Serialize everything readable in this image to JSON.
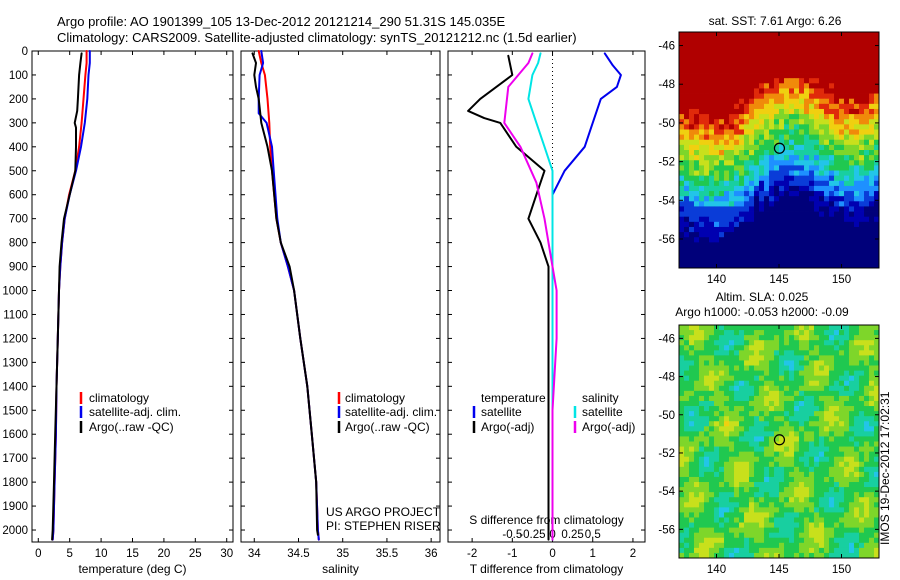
{
  "header": {
    "line1": "Argo profile: AO 1901399_105 13-Dec-2012 20121214_290 51.31S 145.035E",
    "line2": "Climatology: CARS2009. Satellite-adjusted climatology: synTS_20121212.nc (1.5d earlier)"
  },
  "colors": {
    "climatology": "#ff0000",
    "satellite": "#0000ee",
    "argo": "#000000",
    "satellite_salinity": "#00e5e5",
    "argo_salinity": "#ee00ee"
  },
  "legend_profile": {
    "climatology": "climatology",
    "satellite": "satellite-adj. clim.",
    "argo": "Argo(..raw -QC)"
  },
  "legend_diff": {
    "temperature_heading": "temperature",
    "salinity_heading": "salinity",
    "satellite": "satellite",
    "argo": "Argo(-adj)"
  },
  "credits": {
    "line1": "US ARGO PROJECT",
    "line2": "PI: STEPHEN RISER"
  },
  "map_sst": {
    "title": "sat. SST: 7.61 Argo: 6.26",
    "palette": [
      "#00007a",
      "#0000b0",
      "#0a3cd8",
      "#1e90ff",
      "#22c5e8",
      "#18cfa0",
      "#20c850",
      "#7ed62a",
      "#c8e01c",
      "#f0d010",
      "#f08a0a",
      "#e02a0a",
      "#b00000"
    ]
  },
  "map_sla": {
    "title_line1": "Altim. SLA: 0.025",
    "title_line2": "Argo h1000: -0.053 h2000: -0.09"
  },
  "timestamp": "IMOS 19-Dec-2012 17:02:31",
  "chart_data": [
    {
      "type": "line",
      "panel": "temperature",
      "xlabel": "temperature (deg C)",
      "ylabel": "",
      "xlim": [
        -1,
        31
      ],
      "ylim": [
        2050,
        0
      ],
      "xticks": [
        0,
        5,
        10,
        15,
        20,
        25,
        30
      ],
      "xtick_labels": [
        "0",
        "5",
        "10",
        "15",
        "20",
        "25",
        "30"
      ],
      "yticks": [
        0,
        100,
        200,
        300,
        400,
        500,
        600,
        700,
        800,
        900,
        1000,
        1100,
        1200,
        1300,
        1400,
        1500,
        1600,
        1700,
        1800,
        1900,
        2000
      ],
      "ytick_labels": [
        "0",
        "100",
        "200",
        "300",
        "400",
        "500",
        "600",
        "700",
        "800",
        "900",
        "1000",
        "1100",
        "1200",
        "1300",
        "1400",
        "1500",
        "1600",
        "1700",
        "1800",
        "1900",
        "2000"
      ],
      "series": [
        {
          "name": "climatology",
          "color": "#ff0000",
          "points": [
            [
              7.7,
              0
            ],
            [
              7.7,
              50
            ],
            [
              7.5,
              100
            ],
            [
              7.2,
              200
            ],
            [
              6.9,
              300
            ],
            [
              6.5,
              400
            ],
            [
              5.9,
              500
            ],
            [
              4.9,
              600
            ],
            [
              4.2,
              700
            ],
            [
              3.8,
              800
            ],
            [
              3.5,
              900
            ],
            [
              3.3,
              1000
            ],
            [
              3.1,
              1200
            ],
            [
              2.9,
              1400
            ],
            [
              2.8,
              1600
            ],
            [
              2.6,
              1800
            ],
            [
              2.4,
              2000
            ],
            [
              2.3,
              2040
            ]
          ]
        },
        {
          "name": "satellite-adj. clim.",
          "color": "#0000ee",
          "points": [
            [
              8.2,
              0
            ],
            [
              8.2,
              50
            ],
            [
              8.0,
              100
            ],
            [
              7.8,
              200
            ],
            [
              7.4,
              300
            ],
            [
              6.8,
              400
            ],
            [
              6.0,
              500
            ],
            [
              5.0,
              600
            ],
            [
              4.2,
              700
            ],
            [
              3.8,
              800
            ],
            [
              3.5,
              900
            ],
            [
              3.3,
              1000
            ],
            [
              3.1,
              1200
            ],
            [
              2.9,
              1400
            ],
            [
              2.8,
              1600
            ],
            [
              2.6,
              1800
            ],
            [
              2.4,
              2000
            ],
            [
              2.3,
              2040
            ]
          ]
        },
        {
          "name": "Argo(..raw -QC)",
          "color": "#000000",
          "points": [
            [
              6.9,
              10
            ],
            [
              6.7,
              50
            ],
            [
              6.5,
              100
            ],
            [
              6.4,
              150
            ],
            [
              6.3,
              200
            ],
            [
              6.2,
              250
            ],
            [
              5.8,
              300
            ],
            [
              6.0,
              320
            ],
            [
              6.0,
              400
            ],
            [
              5.9,
              500
            ],
            [
              5.0,
              600
            ],
            [
              4.1,
              700
            ],
            [
              3.7,
              800
            ],
            [
              3.4,
              900
            ],
            [
              3.3,
              1000
            ],
            [
              3.1,
              1200
            ],
            [
              2.9,
              1400
            ],
            [
              2.7,
              1600
            ],
            [
              2.5,
              1800
            ],
            [
              2.3,
              2000
            ],
            [
              2.2,
              2040
            ]
          ]
        }
      ]
    },
    {
      "type": "line",
      "panel": "salinity",
      "xlabel": "salinity",
      "ylabel": "",
      "xlim": [
        33.85,
        36.1
      ],
      "ylim": [
        2050,
        0
      ],
      "xticks": [
        34,
        34.5,
        35,
        35.5,
        36
      ],
      "xtick_labels": [
        "34",
        "34.5",
        "35",
        "35.5",
        "36"
      ],
      "series": [
        {
          "name": "climatology",
          "color": "#ff0000",
          "points": [
            [
              34.05,
              0
            ],
            [
              34.08,
              50
            ],
            [
              34.12,
              100
            ],
            [
              34.15,
              200
            ],
            [
              34.17,
              300
            ],
            [
              34.18,
              400
            ],
            [
              34.2,
              500
            ],
            [
              34.25,
              700
            ],
            [
              34.3,
              800
            ],
            [
              34.38,
              900
            ],
            [
              34.45,
              1000
            ],
            [
              34.52,
              1200
            ],
            [
              34.6,
              1400
            ],
            [
              34.65,
              1600
            ],
            [
              34.7,
              1800
            ],
            [
              34.72,
              2000
            ],
            [
              34.73,
              2040
            ]
          ]
        },
        {
          "name": "satellite-adj. clim.",
          "color": "#0000ee",
          "points": [
            [
              34.08,
              0
            ],
            [
              34.1,
              50
            ],
            [
              34.06,
              100
            ],
            [
              34.05,
              200
            ],
            [
              34.05,
              260
            ],
            [
              34.14,
              300
            ],
            [
              34.2,
              400
            ],
            [
              34.22,
              500
            ],
            [
              34.26,
              700
            ],
            [
              34.3,
              800
            ],
            [
              34.38,
              900
            ],
            [
              34.45,
              1000
            ],
            [
              34.52,
              1200
            ],
            [
              34.6,
              1400
            ],
            [
              34.65,
              1600
            ],
            [
              34.7,
              1800
            ],
            [
              34.72,
              2000
            ],
            [
              34.73,
              2040
            ]
          ]
        },
        {
          "name": "Argo(..raw -QC)",
          "color": "#000000",
          "points": [
            [
              33.98,
              10
            ],
            [
              34.02,
              50
            ],
            [
              34.0,
              100
            ],
            [
              34.02,
              150
            ],
            [
              34.05,
              200
            ],
            [
              34.08,
              300
            ],
            [
              34.15,
              400
            ],
            [
              34.2,
              500
            ],
            [
              34.25,
              700
            ],
            [
              34.3,
              800
            ],
            [
              34.4,
              900
            ],
            [
              34.45,
              1000
            ],
            [
              34.52,
              1200
            ],
            [
              34.6,
              1400
            ],
            [
              34.65,
              1600
            ],
            [
              34.7,
              1800
            ],
            [
              34.71,
              2000
            ],
            [
              34.72,
              2020
            ]
          ]
        }
      ]
    },
    {
      "type": "line",
      "panel": "difference",
      "xlabel": "T difference from climatology",
      "xlabel_top": "S difference from climatology",
      "xlim": [
        -2.6,
        2.3
      ],
      "ylim": [
        2050,
        0
      ],
      "xticks": [
        -2,
        -1,
        0,
        1,
        2
      ],
      "xtick_labels": [
        "-2",
        "-1",
        "0",
        "1",
        "2"
      ],
      "xticks_salinity": [
        -0.5,
        -0.25,
        0,
        0.25,
        0.5
      ],
      "xtick_labels_salinity": [
        "-0.5",
        "-0.25",
        "0",
        "0.25",
        "0.5"
      ],
      "series": [
        {
          "name": "temperature satellite",
          "color": "#0000ee",
          "points": [
            [
              1.3,
              10
            ],
            [
              1.5,
              60
            ],
            [
              1.7,
              100
            ],
            [
              1.6,
              150
            ],
            [
              1.2,
              200
            ],
            [
              1.0,
              300
            ],
            [
              0.8,
              400
            ],
            [
              0.3,
              500
            ],
            [
              0.0,
              600
            ],
            [
              0.0,
              700
            ],
            [
              0.0,
              900
            ],
            [
              0.0,
              1200
            ],
            [
              0.0,
              1600
            ],
            [
              0.0,
              2000
            ],
            [
              0.0,
              2040
            ]
          ]
        },
        {
          "name": "temperature Argo(-adj)",
          "color": "#000000",
          "points": [
            [
              -1.1,
              20
            ],
            [
              -1.0,
              100
            ],
            [
              -1.8,
              200
            ],
            [
              -2.1,
              250
            ],
            [
              -1.7,
              280
            ],
            [
              -1.3,
              300
            ],
            [
              -0.9,
              400
            ],
            [
              -0.2,
              500
            ],
            [
              -0.4,
              600
            ],
            [
              -0.6,
              700
            ],
            [
              -0.3,
              800
            ],
            [
              -0.1,
              900
            ],
            [
              -0.1,
              1100
            ],
            [
              -0.1,
              1400
            ],
            [
              -0.1,
              1700
            ],
            [
              -0.1,
              2000
            ],
            [
              -0.1,
              2040
            ]
          ]
        },
        {
          "name": "salinity satellite",
          "color": "#00e5e5",
          "points": [
            [
              -0.15,
              10
            ],
            [
              -0.18,
              50
            ],
            [
              -0.25,
              100
            ],
            [
              -0.3,
              200
            ],
            [
              -0.2,
              300
            ],
            [
              -0.1,
              400
            ],
            [
              0.0,
              500
            ],
            [
              0.0,
              1000
            ],
            [
              0.0,
              2000
            ],
            [
              0.0,
              2040
            ]
          ]
        },
        {
          "name": "salinity Argo(-adj)",
          "color": "#ee00ee",
          "points": [
            [
              -0.25,
              10
            ],
            [
              -0.3,
              50
            ],
            [
              -0.55,
              150
            ],
            [
              -0.6,
              300
            ],
            [
              -0.4,
              400
            ],
            [
              -0.2,
              550
            ],
            [
              -0.1,
              700
            ],
            [
              0.0,
              900
            ],
            [
              0.05,
              1000
            ],
            [
              0.05,
              1200
            ],
            [
              0.0,
              1500
            ],
            [
              0.0,
              2000
            ],
            [
              0.0,
              2040
            ]
          ]
        }
      ]
    },
    {
      "type": "heatmap",
      "panel": "map_sst",
      "title": "sat. SST: 7.61 Argo: 6.26",
      "xlim": [
        137,
        153
      ],
      "ylim": [
        -57.5,
        -45.3
      ],
      "xticks": [
        140,
        145,
        150
      ],
      "xtick_labels": [
        "140",
        "145",
        "150"
      ],
      "yticks": [
        -46,
        -48,
        -50,
        -52,
        -54,
        -56
      ],
      "ytick_labels": [
        "-46",
        "-48",
        "-50",
        "-52",
        "-54",
        "-56"
      ],
      "profile_location": [
        145.035,
        -51.31
      ]
    },
    {
      "type": "heatmap",
      "panel": "map_sla",
      "title": "Altim. SLA: 0.025",
      "xlim": [
        137,
        153
      ],
      "ylim": [
        -57.5,
        -45.3
      ],
      "xticks": [
        140,
        145,
        150
      ],
      "xtick_labels": [
        "140",
        "145",
        "150"
      ],
      "yticks": [
        -46,
        -48,
        -50,
        -52,
        -54,
        -56
      ],
      "ytick_labels": [
        "-46",
        "-48",
        "-50",
        "-52",
        "-54",
        "-56"
      ],
      "profile_location": [
        145.035,
        -51.31
      ]
    }
  ]
}
